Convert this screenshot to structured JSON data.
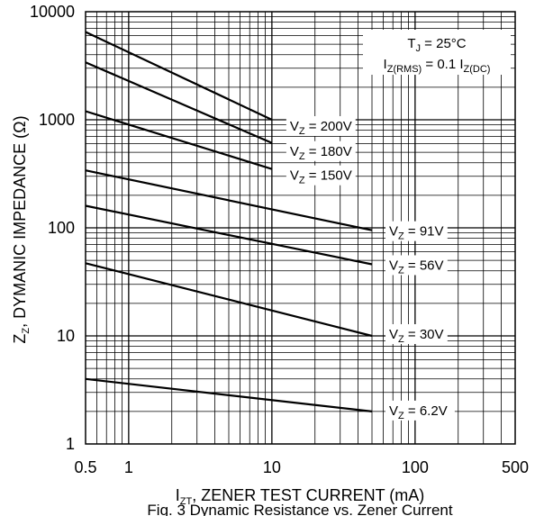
{
  "chart_data": {
    "type": "line",
    "title": "",
    "caption": "Fig. 3 Dynamic Resistance vs. Zener Current",
    "xlabel": {
      "main": "I",
      "sub": "ZT",
      "rest": ", ZENER TEST CURRENT (mA)"
    },
    "ylabel": {
      "main": "Z",
      "sub": "Z",
      "rest": ", DYMANIC IMPEDANCE (Ω)"
    },
    "x_scale": "log",
    "y_scale": "log",
    "xlim": [
      0.5,
      500
    ],
    "ylim": [
      1,
      10000
    ],
    "x_ticks": [
      {
        "value": 0.5,
        "label": "0.5"
      },
      {
        "value": 1,
        "label": "1"
      },
      {
        "value": 10,
        "label": "10"
      },
      {
        "value": 100,
        "label": "100"
      },
      {
        "value": 500,
        "label": "500"
      }
    ],
    "y_ticks": [
      {
        "value": 1,
        "label": "1"
      },
      {
        "value": 10,
        "label": "10"
      },
      {
        "value": 100,
        "label": "100"
      },
      {
        "value": 1000,
        "label": "1000"
      },
      {
        "value": 10000,
        "label": "10000"
      }
    ],
    "grid": true,
    "legend": "none",
    "annotation": {
      "line1": {
        "a": "T",
        "a_sub": "J",
        "b": " = 25°C"
      },
      "line2": {
        "a": "I",
        "a_sub": "Z(RMS)",
        "b": " = 0.1 I",
        "b_sub": "Z(DC)"
      }
    },
    "series": [
      {
        "name": "V",
        "name_sub": "Z",
        "label_rest": " = 200V",
        "x": [
          0.5,
          10
        ],
        "y": [
          6500,
          1000
        ]
      },
      {
        "name": "V",
        "name_sub": "Z",
        "label_rest": " = 180V",
        "x": [
          0.5,
          10
        ],
        "y": [
          3400,
          610
        ]
      },
      {
        "name": "V",
        "name_sub": "Z",
        "label_rest": " = 150V",
        "x": [
          0.5,
          10
        ],
        "y": [
          1200,
          350
        ]
      },
      {
        "name": "V",
        "name_sub": "Z",
        "label_rest": " = 91V",
        "x": [
          0.5,
          50
        ],
        "y": [
          340,
          95
        ]
      },
      {
        "name": "V",
        "name_sub": "Z",
        "label_rest": " = 56V",
        "x": [
          0.5,
          50
        ],
        "y": [
          160,
          46
        ]
      },
      {
        "name": "V",
        "name_sub": "Z",
        "label_rest": " = 30V",
        "x": [
          0.5,
          50
        ],
        "y": [
          47,
          10
        ]
      },
      {
        "name": "V",
        "name_sub": "Z",
        "label_rest": " = 6.2V",
        "x": [
          0.5,
          50
        ],
        "y": [
          4,
          2
        ]
      }
    ]
  }
}
